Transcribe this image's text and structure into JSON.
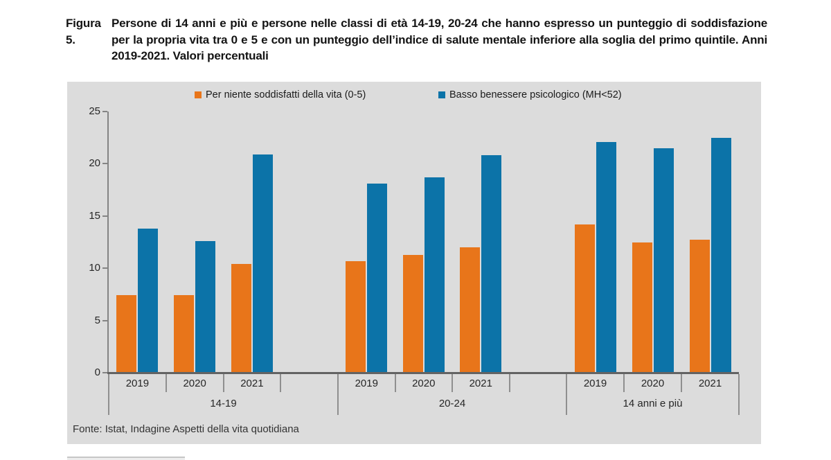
{
  "figure": {
    "label": "Figura 5.",
    "title": "Persone di 14 anni e più e persone nelle classi di età 14-19, 20-24 che hanno espresso un punteggio di soddisfazione per la propria vita tra 0 e 5 e con un punteggio dell’indice di salute mentale inferiore alla soglia del primo quintile. Anni 2019-2021. Valori percentuali"
  },
  "colors": {
    "panel_background": "#dcdcdc",
    "orange": "#E8751A",
    "blue": "#0C73A8",
    "axis": "#848484",
    "baseline": "#636363"
  },
  "chart_data": {
    "type": "bar",
    "title": "Persone di 14 anni e più e persone nelle classi di età 14-19, 20-24 che hanno espresso un punteggio di soddisfazione per la propria vita tra 0 e 5 e con un punteggio dell’indice di salute mentale inferiore alla soglia del primo quintile. Anni 2019-2021. Valori percentuali",
    "ylabel": "",
    "xlabel": "",
    "ylim": [
      0,
      25
    ],
    "yticks": [
      0,
      5,
      10,
      15,
      20,
      25
    ],
    "grid": false,
    "legend_position": "top",
    "series_names": [
      "Per niente soddisfatti della vita (0-5)",
      "Basso benessere psicologico (MH<52)"
    ],
    "series_colors": [
      "#E8751A",
      "#0C73A8"
    ],
    "groups": [
      {
        "label": "14-19",
        "categories": [
          "2019",
          "2020",
          "2021"
        ],
        "values": [
          [
            7.4,
            13.8
          ],
          [
            7.4,
            12.6
          ],
          [
            10.4,
            20.9
          ]
        ],
        "trailing_spacer": true
      },
      {
        "label": "20-24",
        "categories": [
          "2019",
          "2020",
          "2021"
        ],
        "values": [
          [
            10.7,
            18.1
          ],
          [
            11.3,
            18.7
          ],
          [
            12.0,
            20.8
          ]
        ],
        "trailing_spacer": true
      },
      {
        "label": "14 anni e più",
        "categories": [
          "2019",
          "2020",
          "2021"
        ],
        "values": [
          [
            14.2,
            22.1
          ],
          [
            12.5,
            21.5
          ],
          [
            12.7,
            22.5
          ]
        ],
        "trailing_spacer": false
      }
    ]
  },
  "footer": {
    "source": "Fonte: Istat, Indagine Aspetti della vita quotidiana"
  }
}
